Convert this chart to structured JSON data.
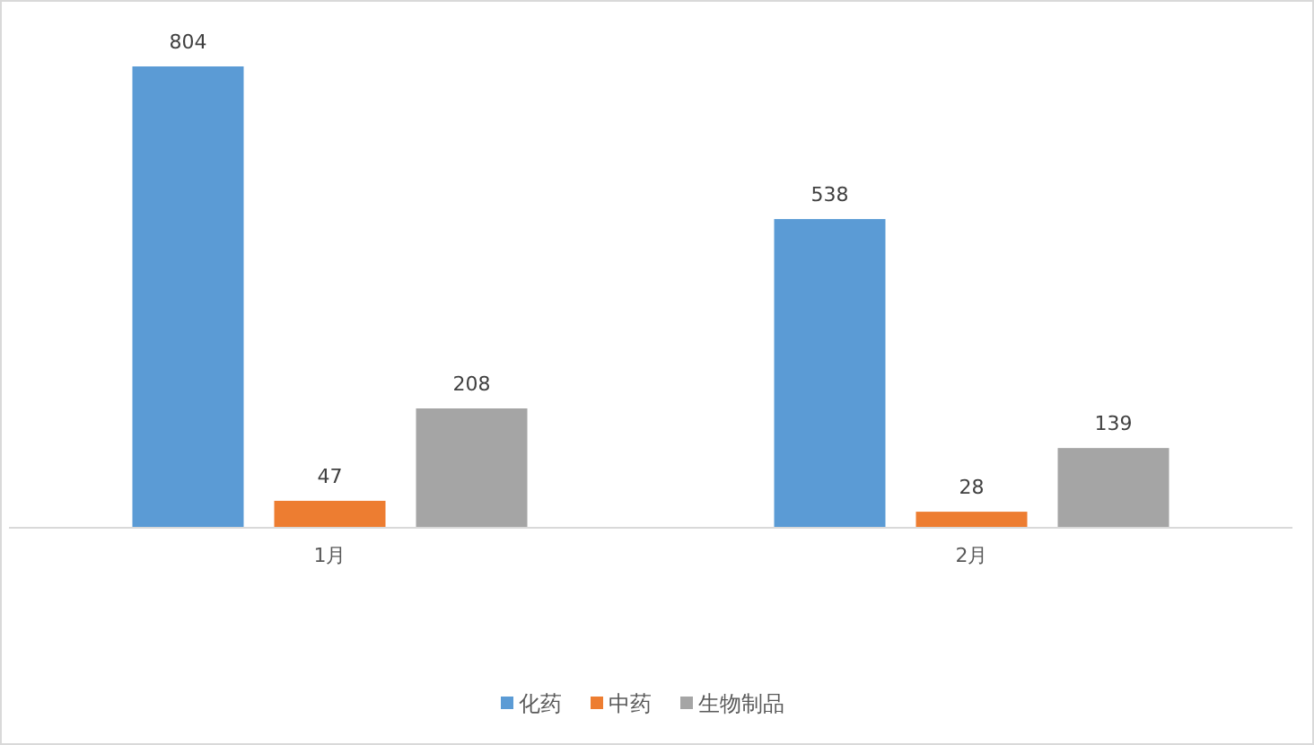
{
  "chart_data": {
    "type": "bar",
    "categories": [
      "1月",
      "2月"
    ],
    "series": [
      {
        "name": "化药",
        "color": "#5b9bd5",
        "values": [
          804,
          538
        ]
      },
      {
        "name": "中药",
        "color": "#ed7d31",
        "values": [
          47,
          28
        ]
      },
      {
        "name": "生物制品",
        "color": "#a5a5a5",
        "values": [
          208,
          139
        ]
      }
    ],
    "data_labels": true,
    "legend": "bottom"
  }
}
